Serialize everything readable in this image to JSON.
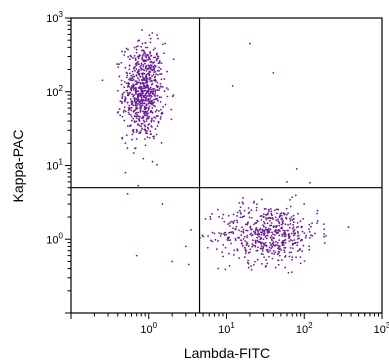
{
  "chart_data": {
    "type": "scatter",
    "title": "",
    "xlabel": "Lambda-FITC",
    "ylabel": "Kappa-PAC",
    "x_scale": "log",
    "y_scale": "log",
    "xlim": [
      0.1,
      1000
    ],
    "ylim": [
      0.1,
      1000
    ],
    "x_ticks": [
      {
        "value": 1,
        "base": "10",
        "exp": "0"
      },
      {
        "value": 10,
        "base": "10",
        "exp": "1"
      },
      {
        "value": 100,
        "base": "10",
        "exp": "2"
      },
      {
        "value": 1000,
        "base": "10",
        "exp": "3"
      }
    ],
    "y_ticks": [
      {
        "value": 1,
        "base": "10",
        "exp": "0"
      },
      {
        "value": 10,
        "base": "10",
        "exp": "1"
      },
      {
        "value": 100,
        "base": "10",
        "exp": "2"
      },
      {
        "value": 1000,
        "base": "10",
        "exp": "3"
      }
    ],
    "gates": {
      "x": 4.5,
      "y": 5.0
    },
    "grid": false,
    "point_color": "#6a1b9a",
    "populations": [
      {
        "center_x": 0.85,
        "center_y": 100,
        "spread_x_log": 0.13,
        "spread_y_log": 0.33,
        "count": 760
      },
      {
        "center_x": 35,
        "center_y": 1.2,
        "spread_x_log": 0.32,
        "spread_y_log": 0.2,
        "count": 560
      }
    ],
    "outliers": [
      {
        "x": 20,
        "y": 450
      },
      {
        "x": 12,
        "y": 120
      },
      {
        "x": 40,
        "y": 180
      },
      {
        "x": 80,
        "y": 9
      },
      {
        "x": 60,
        "y": 6
      },
      {
        "x": 3,
        "y": 0.8
      },
      {
        "x": 2,
        "y": 0.5
      },
      {
        "x": 1.5,
        "y": 3
      },
      {
        "x": 0.5,
        "y": 8
      },
      {
        "x": 0.7,
        "y": 0.6
      },
      {
        "x": 7,
        "y": 1.2
      }
    ]
  }
}
